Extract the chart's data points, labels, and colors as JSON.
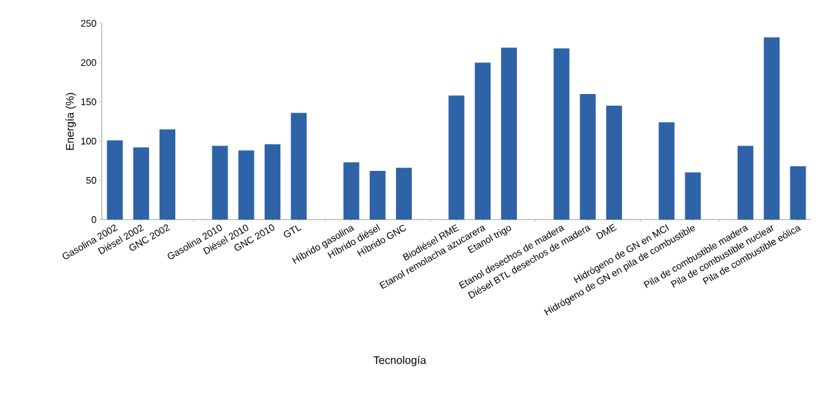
{
  "chart_data": {
    "type": "bar",
    "xlabel": "Tecnología",
    "ylabel": "Energía (%)",
    "categories": [
      "Gasolina 2002",
      "Diésel 2002",
      "GNC 2002",
      null,
      "Gasolina 2010",
      "Diésel 2010",
      "GNC 2010",
      "GTL",
      null,
      "Híbrido gasolina",
      "Híbrido diésel",
      "Híbrido GNC",
      null,
      "Biodiésel RME",
      "Etanol remolacha azucarera",
      "Etanol trigo",
      null,
      "Etanol desechos de madera",
      "Diésel  BTL desechos de madera",
      "DME",
      null,
      "Hidrógeno de GN en MCI",
      "Hidrógeno de GN en pila de combustible",
      null,
      "Pila de combustible madera",
      "Pila de combustible nuclear",
      "Pila de combustible eólica"
    ],
    "values": [
      101,
      92,
      115,
      null,
      94,
      88,
      96,
      136,
      null,
      73,
      62,
      66,
      null,
      158,
      200,
      219,
      null,
      218,
      160,
      145,
      null,
      124,
      60,
      null,
      94,
      232,
      68
    ],
    "color": "#2e63a8",
    "ylim": [
      0,
      250
    ],
    "yticks": [
      0,
      50,
      100,
      150,
      200,
      250
    ],
    "grid": false
  }
}
